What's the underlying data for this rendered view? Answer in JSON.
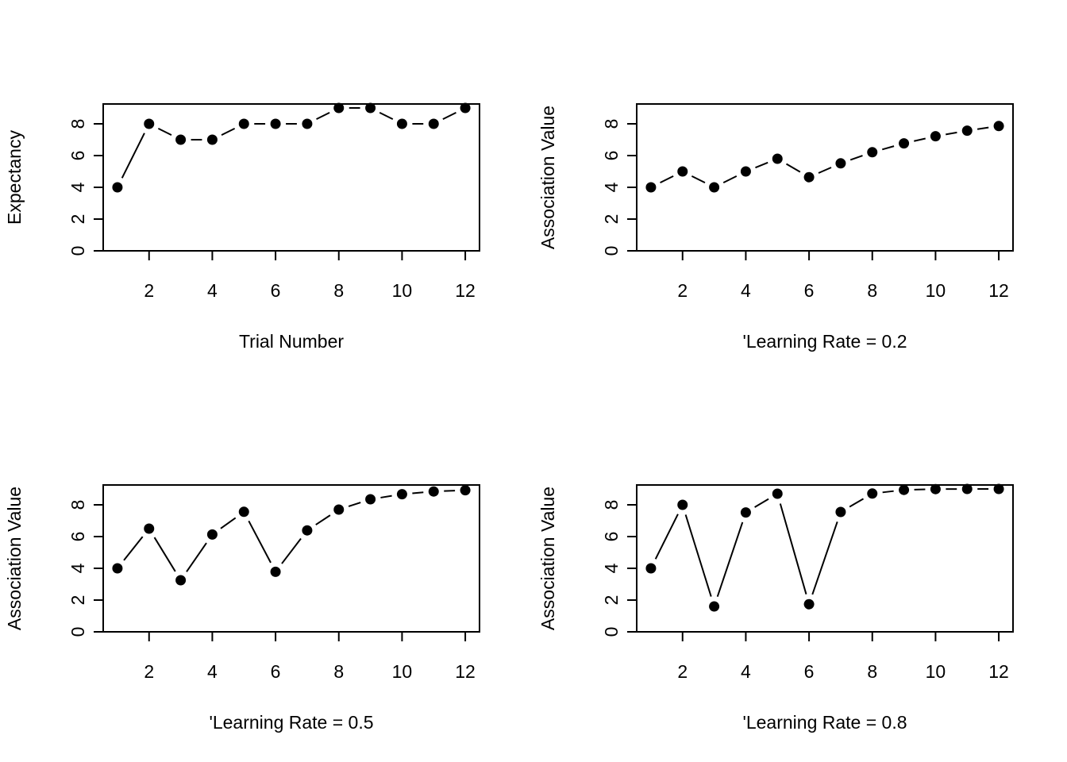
{
  "chart_data": [
    {
      "type": "line",
      "title": "",
      "xlabel": "Trial Number",
      "ylabel": "Expectancy",
      "xlim": [
        0.55,
        12.45
      ],
      "ylim": [
        0,
        9.25
      ],
      "x": [
        1,
        2,
        3,
        4,
        5,
        6,
        7,
        8,
        9,
        10,
        11,
        12
      ],
      "series": [
        {
          "values": [
            4,
            8,
            7,
            7,
            8,
            8,
            8,
            9,
            9,
            8,
            8,
            9
          ]
        }
      ],
      "marker": "filled-circle",
      "line_style": "b",
      "xticks": [
        2,
        4,
        6,
        8,
        10,
        12
      ],
      "xtick_labels": [
        "2",
        "4",
        "6",
        "8",
        "10",
        "12"
      ],
      "yticks": [
        0,
        2,
        4,
        6,
        8
      ],
      "ytick_labels": [
        "0",
        "2",
        "4",
        "6",
        "8"
      ],
      "grid": false,
      "legend": "none"
    },
    {
      "type": "line",
      "title": "",
      "xlabel": "'Learning Rate = 0.2",
      "ylabel": "Association Value",
      "xlim": [
        0.55,
        12.45
      ],
      "ylim": [
        0,
        9.25
      ],
      "x": [
        1,
        2,
        3,
        4,
        5,
        6,
        7,
        8,
        9,
        10,
        11,
        12
      ],
      "series": [
        {
          "values": [
            4,
            5,
            4,
            5,
            5.8,
            4.64,
            5.51,
            6.21,
            6.77,
            7.22,
            7.57,
            7.86
          ]
        }
      ],
      "marker": "filled-circle",
      "line_style": "b",
      "xticks": [
        2,
        4,
        6,
        8,
        10,
        12
      ],
      "xtick_labels": [
        "2",
        "4",
        "6",
        "8",
        "10",
        "12"
      ],
      "yticks": [
        0,
        2,
        4,
        6,
        8
      ],
      "ytick_labels": [
        "0",
        "2",
        "4",
        "6",
        "8"
      ],
      "grid": false,
      "legend": "none"
    },
    {
      "type": "line",
      "title": "",
      "xlabel": "'Learning Rate = 0.5",
      "ylabel": "Association Value",
      "xlim": [
        0.55,
        12.45
      ],
      "ylim": [
        0,
        9.25
      ],
      "x": [
        1,
        2,
        3,
        4,
        5,
        6,
        7,
        8,
        9,
        10,
        11,
        12
      ],
      "series": [
        {
          "values": [
            4,
            6.5,
            3.25,
            6.13,
            7.56,
            3.78,
            6.39,
            7.7,
            8.35,
            8.67,
            8.84,
            8.92
          ]
        }
      ],
      "marker": "filled-circle",
      "line_style": "b",
      "xticks": [
        2,
        4,
        6,
        8,
        10,
        12
      ],
      "xtick_labels": [
        "2",
        "4",
        "6",
        "8",
        "10",
        "12"
      ],
      "yticks": [
        0,
        2,
        4,
        6,
        8
      ],
      "ytick_labels": [
        "0",
        "2",
        "4",
        "6",
        "8"
      ],
      "grid": false,
      "legend": "none"
    },
    {
      "type": "line",
      "title": "",
      "xlabel": "'Learning Rate = 0.8",
      "ylabel": "Association Value",
      "xlim": [
        0.55,
        12.45
      ],
      "ylim": [
        0,
        9.25
      ],
      "x": [
        1,
        2,
        3,
        4,
        5,
        6,
        7,
        8,
        9,
        10,
        11,
        12
      ],
      "series": [
        {
          "values": [
            4,
            8,
            1.6,
            7.52,
            8.7,
            1.74,
            7.55,
            8.71,
            8.94,
            8.99,
            9.0,
            9.0
          ]
        }
      ],
      "marker": "filled-circle",
      "line_style": "b",
      "xticks": [
        2,
        4,
        6,
        8,
        10,
        12
      ],
      "xtick_labels": [
        "2",
        "4",
        "6",
        "8",
        "10",
        "12"
      ],
      "yticks": [
        0,
        2,
        4,
        6,
        8
      ],
      "ytick_labels": [
        "0",
        "2",
        "4",
        "6",
        "8"
      ],
      "grid": false,
      "legend": "none"
    }
  ]
}
